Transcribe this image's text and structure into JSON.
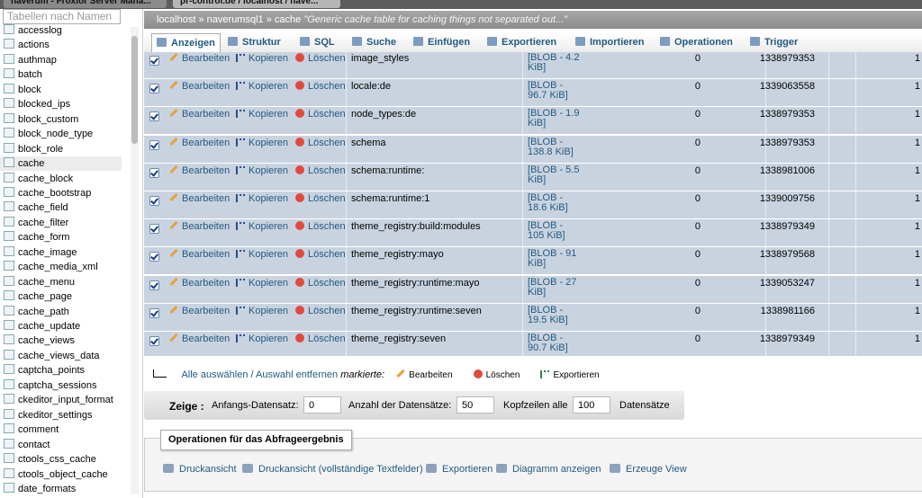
{
  "browser": {
    "tabs": [
      "naverum - Froxlor Server Mana...",
      "pr-control.de / localhost / nave..."
    ]
  },
  "sidebar": {
    "filter_placeholder": "Tabellen nach Namen",
    "tables": [
      "accesslog",
      "actions",
      "authmap",
      "batch",
      "block",
      "blocked_ips",
      "block_custom",
      "block_node_type",
      "block_role",
      "cache",
      "cache_block",
      "cache_bootstrap",
      "cache_field",
      "cache_filter",
      "cache_form",
      "cache_image",
      "cache_media_xml",
      "cache_menu",
      "cache_page",
      "cache_path",
      "cache_update",
      "cache_views",
      "cache_views_data",
      "captcha_points",
      "captcha_sessions",
      "ckeditor_input_format",
      "ckeditor_settings",
      "comment",
      "contact",
      "ctools_css_cache",
      "ctools_object_cache",
      "date_formats"
    ]
  },
  "breadcrumb": {
    "server": "localhost",
    "separator": "»",
    "database": "naverumsql1",
    "table": "cache",
    "comment": "\"Generic cache table for caching things not separated out...\""
  },
  "tabs": [
    "Anzeigen",
    "Struktur",
    "SQL",
    "Suche",
    "Einfügen",
    "Exportieren",
    "Importieren",
    "Operationen",
    "Trigger"
  ],
  "row_actions": {
    "edit": "Bearbeiten",
    "copy": "Kopieren",
    "delete": "Löschen"
  },
  "table": {
    "rows": [
      [
        "image_styles",
        "[BLOB - 4.2 KiB]",
        "0",
        "1338979353",
        "1"
      ],
      [
        "locale:de",
        "[BLOB - 96.7 KiB]",
        "0",
        "1339063558",
        "1"
      ],
      [
        "node_types:de",
        "[BLOB - 1.9 KiB]",
        "0",
        "1338979353",
        "1"
      ],
      [
        "schema",
        "[BLOB - 138.8 KiB]",
        "0",
        "1338979353",
        "1"
      ],
      [
        "schema:runtime:",
        "[BLOB - 5.5 KiB]",
        "0",
        "1338981006",
        "1"
      ],
      [
        "schema:runtime:1",
        "[BLOB - 18.6 KiB]",
        "0",
        "1339009756",
        "1"
      ],
      [
        "theme_registry:build:modules",
        "[BLOB - 105 KiB]",
        "0",
        "1338979349",
        "1"
      ],
      [
        "theme_registry:mayo",
        "[BLOB - 91 KiB]",
        "0",
        "1338979568",
        "1"
      ],
      [
        "theme_registry:runtime:mayo",
        "[BLOB - 27 KiB]",
        "0",
        "1339053247",
        "1"
      ],
      [
        "theme_registry:runtime:seven",
        "[BLOB - 19.5 KiB]",
        "0",
        "1338981166",
        "1"
      ],
      [
        "theme_registry:seven",
        "[BLOB - 90.7 KiB]",
        "0",
        "1338979349",
        "1"
      ]
    ]
  },
  "bulk_actions": {
    "select_toggle": "Alle auswählen / Auswahl entfernen",
    "with_selected": "markierte:",
    "edit": "Bearbeiten",
    "delete": "Löschen",
    "export": "Exportieren"
  },
  "navigation": {
    "show": "Zeige :",
    "start_label": "Anfangs-Datensatz:",
    "start_value": "0",
    "count_label": "Anzahl der Datensätze:",
    "count_value": "50",
    "headers_label": "Kopfzeilen alle",
    "headers_value": "100",
    "suffix": "Datensätze"
  },
  "query_operations": {
    "legend": "Operationen für das Abfrageergebnis",
    "links": [
      "Druckansicht",
      "Druckansicht (vollständige Textfelder)",
      "Exportieren",
      "Diagramm anzeigen",
      "Erzeuge View"
    ]
  }
}
